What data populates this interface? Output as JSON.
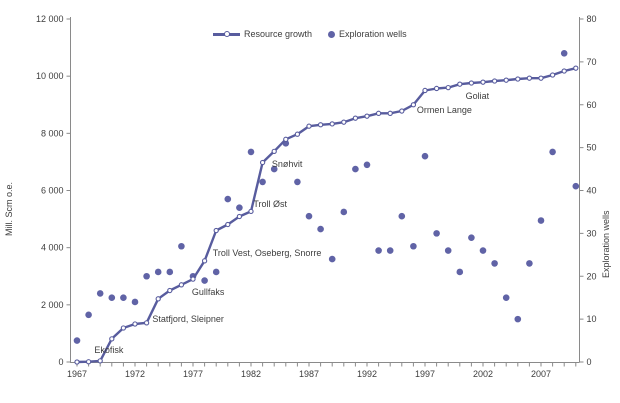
{
  "chart_data": {
    "type": "line",
    "title": "",
    "x_years": [
      1967,
      1968,
      1969,
      1970,
      1971,
      1972,
      1973,
      1974,
      1975,
      1976,
      1977,
      1978,
      1979,
      1980,
      1981,
      1982,
      1983,
      1984,
      1985,
      1986,
      1987,
      1988,
      1989,
      1990,
      1991,
      1992,
      1993,
      1994,
      1995,
      1996,
      1997,
      1998,
      1999,
      2000,
      2001,
      2002,
      2003,
      2004,
      2005,
      2006,
      2007,
      2008,
      2009,
      2010
    ],
    "series": [
      {
        "name": "Resource growth",
        "type": "line",
        "axis": "left",
        "values": [
          0,
          10,
          40,
          810,
          1190,
          1330,
          1370,
          2210,
          2500,
          2700,
          2900,
          3540,
          4600,
          4810,
          5090,
          5270,
          6980,
          7370,
          7790,
          7970,
          8250,
          8300,
          8330,
          8390,
          8530,
          8600,
          8700,
          8700,
          8780,
          9000,
          9500,
          9570,
          9600,
          9720,
          9760,
          9790,
          9830,
          9860,
          9900,
          9930,
          9930,
          10040,
          10180,
          10280
        ]
      },
      {
        "name": "Exploration wells",
        "type": "scatter",
        "axis": "right",
        "values": [
          5,
          11,
          16,
          15,
          15,
          14,
          20,
          21,
          21,
          27,
          20,
          19,
          21,
          38,
          36,
          49,
          42,
          45,
          51,
          42,
          34,
          31,
          24,
          35,
          45,
          46,
          26,
          26,
          34,
          27,
          48,
          30,
          26,
          21,
          29,
          26,
          23,
          15,
          10,
          23,
          33,
          49,
          72,
          41
        ]
      }
    ],
    "left_axis": {
      "label": "Mill. Scm o.e.",
      "min": 0,
      "max": 12000,
      "tick_step": 2000,
      "tick_labels": [
        "0",
        "2 000",
        "4 000",
        "6 000",
        "8 000",
        "10 000",
        "12 000"
      ]
    },
    "right_axis": {
      "label": "Exploration wells",
      "min": 0,
      "max": 80,
      "tick_step": 10,
      "tick_labels": [
        "0",
        "10",
        "20",
        "30",
        "40",
        "50",
        "60",
        "70",
        "80"
      ]
    },
    "x_axis": {
      "minor_tick_every": 1,
      "label_every": 5,
      "tick_labels": [
        "1967",
        "1972",
        "1977",
        "1982",
        "1987",
        "1992",
        "1997",
        "2002",
        "2007"
      ]
    },
    "annotations": [
      {
        "label": "Ekofisk",
        "year": 1968.5,
        "value": 310
      },
      {
        "label": "Statfjord, Sleipner",
        "year": 1973.5,
        "value": 1400
      },
      {
        "label": "Gullfaks",
        "year": 1976.9,
        "value": 2340
      },
      {
        "label": "Troll Vest, Oseberg, Snorre",
        "year": 1978.7,
        "value": 3710
      },
      {
        "label": "Troll Øst",
        "year": 1982.2,
        "value": 5420
      },
      {
        "label": "Snøhvit",
        "year": 1983.8,
        "value": 6820
      },
      {
        "label": "Ormen Lange",
        "year": 1996.3,
        "value": 8710
      },
      {
        "label": "Goliat",
        "year": 2000.5,
        "value": 9200
      }
    ],
    "legend": {
      "items": [
        {
          "label": "Resource growth",
          "marker": "line"
        },
        {
          "label": "Exploration wells",
          "marker": "dot"
        }
      ],
      "position": "top-center"
    },
    "grid": false,
    "colors": {
      "line": "#585c9e",
      "dots": "#6063a6",
      "axis": "#8a8a8a",
      "text": "#3d3d3d"
    }
  }
}
